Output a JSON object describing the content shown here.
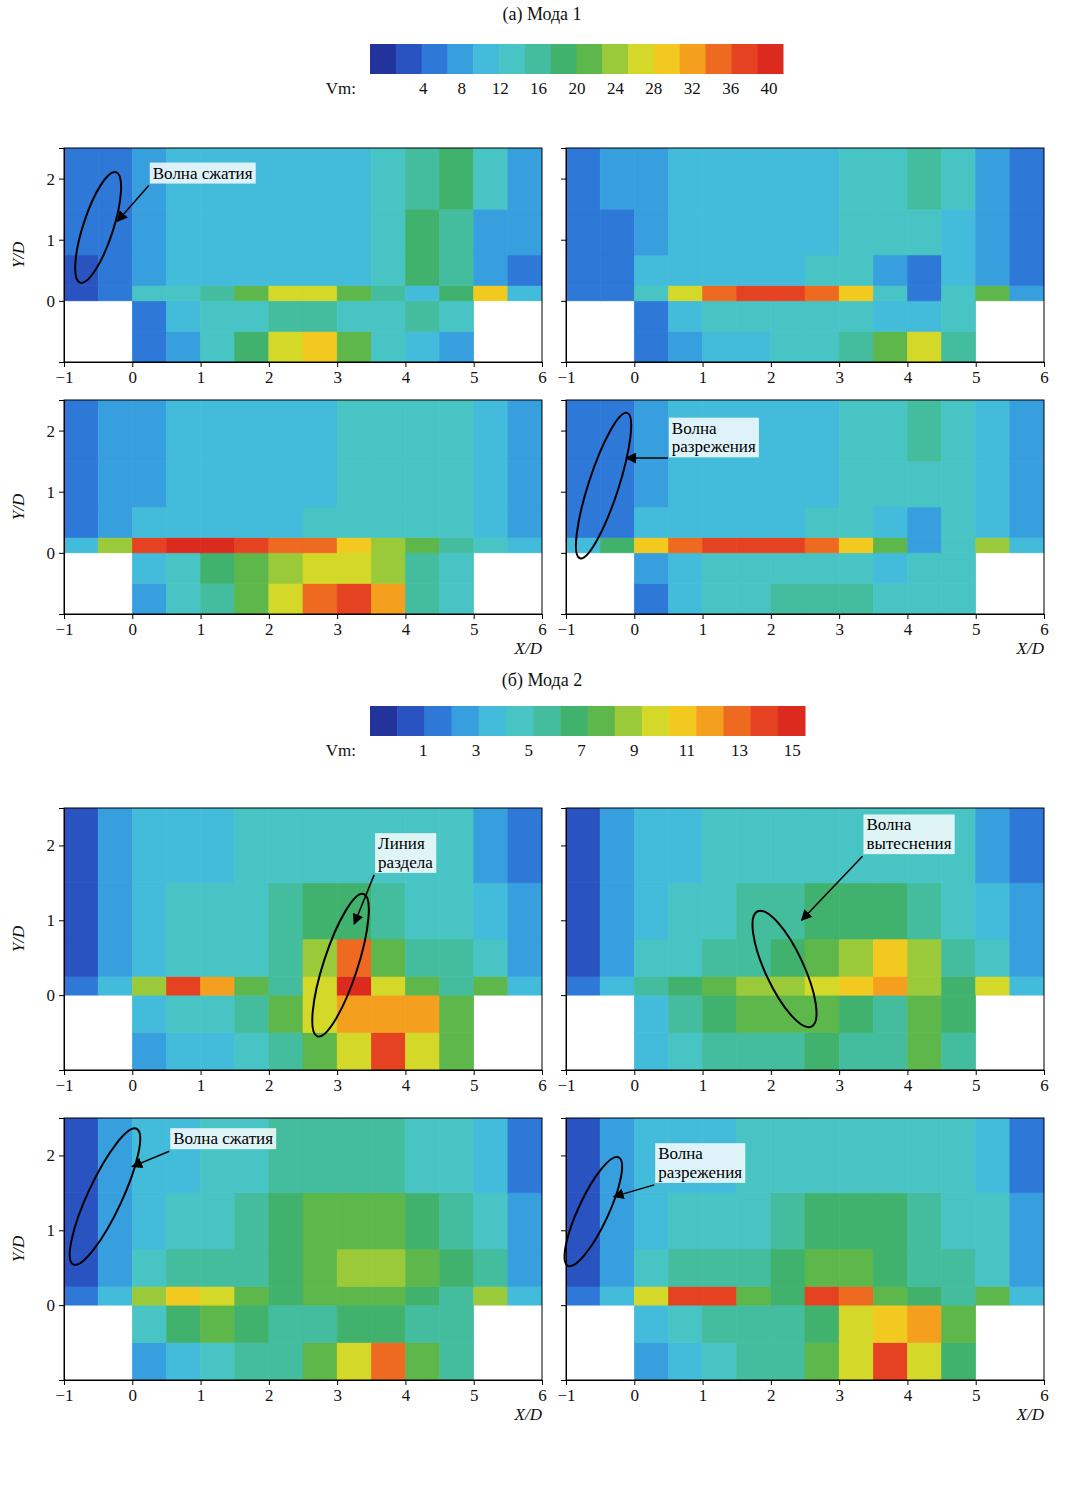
{
  "chart_data": [
    {
      "type": "heatmap",
      "title": "(а) Мода 1",
      "colorbar": {
        "label": "Vm:",
        "range": [
          -1.5,
          41.5
        ],
        "ticks": [
          4,
          8,
          12,
          16,
          20,
          24,
          28,
          32,
          36,
          40
        ]
      },
      "xlabel": "X/D",
      "ylabel": "Y/D",
      "xlim": [
        -1,
        6
      ],
      "ylim": [
        -1,
        2.5
      ],
      "xticks": [
        -1,
        0,
        1,
        2,
        3,
        4,
        5,
        6
      ],
      "yticks": [
        0,
        1,
        2
      ],
      "x_bins": [
        -1,
        -0.5,
        0,
        0.5,
        1,
        1.5,
        2,
        2.5,
        3,
        3.5,
        4,
        4.5,
        5,
        5.5,
        6
      ],
      "y_bins": [
        -1,
        -0.5,
        0,
        0.25,
        0.75,
        1.5,
        2.5
      ],
      "panels": [
        {
          "annotations": [
            "Волна сжатия"
          ],
          "cells": [
            [
              null,
              null,
              4,
              8,
              12,
              18,
              28,
              30,
              22,
              14,
              10,
              8,
              null,
              null
            ],
            [
              null,
              null,
              6,
              10,
              12,
              14,
              16,
              16,
              14,
              12,
              16,
              14,
              null,
              null
            ],
            [
              2,
              4,
              12,
              14,
              16,
              20,
              28,
              26,
              20,
              16,
              10,
              18,
              30,
              10
            ],
            [
              2,
              6,
              8,
              10,
              10,
              10,
              10,
              10,
              10,
              12,
              18,
              16,
              8,
              6
            ],
            [
              4,
              6,
              8,
              10,
              10,
              10,
              10,
              10,
              10,
              14,
              18,
              16,
              8,
              8
            ],
            [
              4,
              6,
              8,
              10,
              10,
              10,
              10,
              10,
              10,
              12,
              16,
              18,
              12,
              8
            ]
          ]
        },
        {
          "annotations": [],
          "tick_labels": "x",
          "cells": [
            [
              null,
              null,
              4,
              8,
              10,
              10,
              12,
              14,
              16,
              20,
              26,
              16,
              null,
              null
            ],
            [
              null,
              null,
              6,
              10,
              12,
              14,
              14,
              12,
              12,
              10,
              10,
              12,
              null,
              null
            ],
            [
              4,
              6,
              14,
              28,
              36,
              38,
              38,
              36,
              30,
              12,
              6,
              12,
              22,
              8
            ],
            [
              4,
              6,
              10,
              10,
              10,
              10,
              10,
              12,
              12,
              8,
              6,
              10,
              8,
              6
            ],
            [
              4,
              6,
              8,
              10,
              10,
              10,
              10,
              10,
              12,
              14,
              12,
              10,
              8,
              6
            ],
            [
              4,
              8,
              8,
              10,
              10,
              10,
              10,
              10,
              12,
              14,
              16,
              14,
              8,
              6
            ]
          ]
        },
        {
          "annotations": [],
          "cells": [
            [
              null,
              null,
              8,
              12,
              16,
              20,
              26,
              34,
              38,
              32,
              16,
              12,
              null,
              null
            ],
            [
              null,
              null,
              10,
              14,
              18,
              22,
              24,
              26,
              28,
              24,
              16,
              12,
              null,
              null
            ],
            [
              10,
              24,
              38,
              40,
              40,
              38,
              36,
              34,
              30,
              24,
              20,
              16,
              14,
              10
            ],
            [
              4,
              8,
              10,
              10,
              10,
              10,
              10,
              12,
              12,
              14,
              14,
              12,
              10,
              8
            ],
            [
              4,
              8,
              8,
              10,
              10,
              10,
              10,
              10,
              12,
              12,
              14,
              12,
              10,
              8
            ],
            [
              4,
              8,
              8,
              10,
              10,
              10,
              10,
              10,
              12,
              14,
              14,
              12,
              10,
              8
            ]
          ]
        },
        {
          "annotations": [
            "Волна разрежения"
          ],
          "tick_labels": "x",
          "cells": [
            [
              null,
              null,
              6,
              10,
              12,
              14,
              16,
              16,
              16,
              14,
              14,
              12,
              null,
              null
            ],
            [
              null,
              null,
              8,
              10,
              12,
              14,
              14,
              12,
              12,
              10,
              12,
              14,
              null,
              null
            ],
            [
              10,
              18,
              30,
              36,
              38,
              38,
              38,
              36,
              30,
              20,
              8,
              14,
              24,
              10
            ],
            [
              4,
              6,
              10,
              10,
              10,
              10,
              10,
              12,
              12,
              10,
              8,
              12,
              10,
              8
            ],
            [
              4,
              6,
              8,
              10,
              10,
              10,
              10,
              10,
              12,
              14,
              14,
              12,
              10,
              8
            ],
            [
              4,
              6,
              8,
              10,
              10,
              10,
              10,
              10,
              12,
              14,
              16,
              14,
              10,
              8
            ]
          ]
        }
      ]
    },
    {
      "type": "heatmap",
      "title": "(б) Мода 2",
      "colorbar": {
        "label": "Vm:",
        "range": [
          -1,
          15.5
        ],
        "ticks": [
          1,
          3,
          5,
          7,
          9,
          11,
          13,
          15
        ]
      },
      "xlabel": "X/D",
      "ylabel": "Y/D",
      "xlim": [
        -1,
        6
      ],
      "ylim": [
        -1,
        2.5
      ],
      "xticks": [
        -1,
        0,
        1,
        2,
        3,
        4,
        5,
        6
      ],
      "yticks": [
        0,
        1,
        2
      ],
      "x_bins": [
        -1,
        -0.5,
        0,
        0.5,
        1,
        1.5,
        2,
        2.5,
        3,
        3.5,
        4,
        4.5,
        5,
        5.5,
        6
      ],
      "y_bins": [
        -1,
        -0.5,
        0,
        0.25,
        0.75,
        1.5,
        2.5
      ],
      "panels": [
        {
          "annotations": [
            "Линия раздела"
          ],
          "cells": [
            [
              null,
              null,
              3,
              4,
              4,
              5,
              6,
              8,
              10,
              14,
              10,
              8,
              null,
              null
            ],
            [
              null,
              null,
              4,
              5,
              5,
              6,
              8,
              10,
              12,
              12,
              12,
              8,
              null,
              null
            ],
            [
              2,
              4,
              9,
              14,
              12,
              8,
              6,
              10,
              15,
              10,
              8,
              6,
              8,
              4
            ],
            [
              1,
              3,
              4,
              5,
              5,
              5,
              6,
              9,
              13,
              8,
              6,
              6,
              5,
              3
            ],
            [
              1,
              3,
              4,
              5,
              5,
              5,
              6,
              7,
              7,
              6,
              5,
              5,
              4,
              3
            ],
            [
              1,
              3,
              4,
              4,
              4,
              5,
              5,
              5,
              5,
              5,
              5,
              5,
              3,
              2
            ]
          ]
        },
        {
          "annotations": [
            "Волна вытеснения"
          ],
          "tick_labels": "x",
          "cells": [
            [
              null,
              null,
              4,
              5,
              6,
              6,
              6,
              7,
              6,
              6,
              8,
              6,
              null,
              null
            ],
            [
              null,
              null,
              4,
              6,
              7,
              8,
              8,
              8,
              7,
              6,
              8,
              7,
              null,
              null
            ],
            [
              2,
              4,
              6,
              7,
              8,
              9,
              9,
              10,
              11,
              12,
              9,
              7,
              10,
              4
            ],
            [
              1,
              3,
              5,
              5,
              6,
              6,
              7,
              8,
              9,
              11,
              9,
              6,
              5,
              3
            ],
            [
              1,
              3,
              4,
              5,
              5,
              6,
              6,
              7,
              7,
              7,
              6,
              5,
              4,
              3
            ],
            [
              1,
              3,
              4,
              4,
              5,
              5,
              5,
              5,
              5,
              5,
              5,
              5,
              3,
              2
            ]
          ]
        },
        {
          "annotations": [
            "Волна сжатия"
          ],
          "cells": [
            [
              null,
              null,
              3,
              4,
              5,
              6,
              6,
              8,
              10,
              13,
              8,
              6,
              null,
              null
            ],
            [
              null,
              null,
              5,
              7,
              8,
              7,
              6,
              6,
              7,
              7,
              6,
              6,
              null,
              null
            ],
            [
              2,
              4,
              9,
              11,
              10,
              8,
              7,
              8,
              8,
              8,
              7,
              6,
              9,
              4
            ],
            [
              1,
              3,
              5,
              6,
              6,
              6,
              7,
              8,
              9,
              9,
              8,
              7,
              6,
              3
            ],
            [
              1,
              3,
              4,
              5,
              5,
              6,
              7,
              8,
              8,
              8,
              7,
              6,
              5,
              3
            ],
            [
              1,
              3,
              4,
              4,
              5,
              5,
              6,
              6,
              6,
              6,
              5,
              5,
              4,
              2
            ]
          ]
        },
        {
          "annotations": [
            "Волна разрежения"
          ],
          "tick_labels": "x",
          "cells": [
            [
              null,
              null,
              3,
              4,
              5,
              6,
              6,
              8,
              10,
              14,
              10,
              7,
              null,
              null
            ],
            [
              null,
              null,
              4,
              5,
              6,
              6,
              6,
              7,
              10,
              11,
              12,
              8,
              null,
              null
            ],
            [
              2,
              4,
              10,
              14,
              14,
              8,
              7,
              14,
              13,
              8,
              7,
              6,
              8,
              4
            ],
            [
              1,
              3,
              5,
              6,
              6,
              6,
              7,
              8,
              8,
              7,
              6,
              6,
              5,
              3
            ],
            [
              1,
              3,
              4,
              5,
              5,
              5,
              6,
              7,
              7,
              7,
              6,
              5,
              5,
              3
            ],
            [
              1,
              3,
              4,
              4,
              4,
              5,
              5,
              5,
              5,
              5,
              5,
              5,
              4,
              2
            ]
          ]
        }
      ]
    }
  ]
}
